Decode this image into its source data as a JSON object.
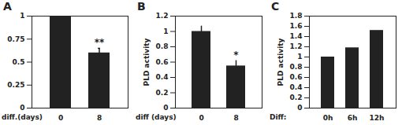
{
  "chart_data": [
    {
      "type": "bar",
      "title": "A",
      "x_label": "diff.(days)",
      "y_label": null,
      "categories": [
        "0",
        "8"
      ],
      "values": [
        1.0,
        0.6
      ],
      "errors": [
        null,
        0.05
      ],
      "color": "#222222",
      "ylim": [
        0,
        1
      ],
      "yticks": [
        0,
        0.25,
        0.5,
        0.75,
        1
      ],
      "annotations": [
        {
          "category": "8",
          "text": "**"
        }
      ]
    },
    {
      "type": "bar",
      "title": "B",
      "x_label": "diff (days)",
      "y_label": "PLD activity",
      "categories": [
        "0",
        "8"
      ],
      "values": [
        1.0,
        0.55
      ],
      "errors": [
        0.07,
        0.07
      ],
      "color": "#222222",
      "ylim": [
        0,
        1.2
      ],
      "yticks": [
        0,
        0.2,
        0.4,
        0.6,
        0.8,
        1,
        1.2
      ],
      "annotations": [
        {
          "category": "8",
          "text": "*"
        }
      ]
    },
    {
      "type": "bar",
      "title": "C",
      "x_label": "Diff:",
      "y_label": "PLD activity",
      "categories": [
        "0h",
        "6h",
        "12h"
      ],
      "values": [
        1.0,
        1.18,
        1.52
      ],
      "color": "#222222",
      "ylim": [
        0,
        1.8
      ],
      "yticks": [
        0,
        0.2,
        0.4,
        0.6,
        0.8,
        1,
        1.2,
        1.4,
        1.6,
        1.8
      ]
    }
  ]
}
